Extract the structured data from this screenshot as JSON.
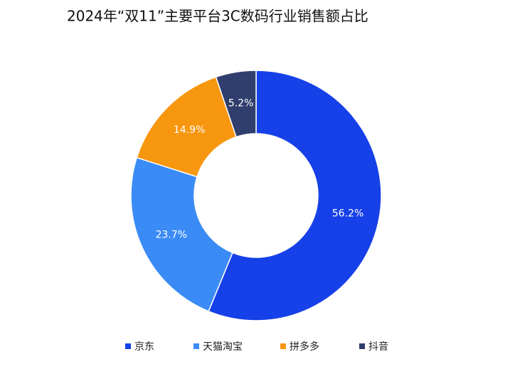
{
  "chart_data": {
    "type": "donut",
    "title": "2024年“双11”主要平台3C数码行业销售额占比",
    "categories": [
      "京东",
      "天猫淘宝",
      "拼多多",
      "抖音"
    ],
    "values": [
      56.2,
      23.7,
      14.9,
      5.2
    ],
    "value_labels": [
      "56.2%",
      "23.7%",
      "14.9%",
      "5.2%"
    ],
    "colors": [
      "#1640e8",
      "#3a8bf5",
      "#f7960f",
      "#2f3e6c"
    ],
    "legend": "bottom"
  }
}
